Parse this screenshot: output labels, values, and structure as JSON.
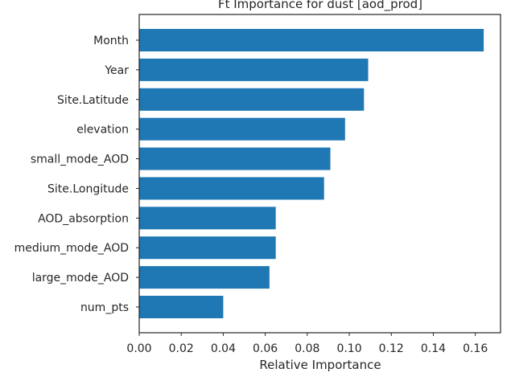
{
  "chart_data": {
    "type": "bar",
    "orientation": "horizontal",
    "title": "Ft Importance for dust [aod_prod]",
    "xlabel": "Relative Importance",
    "ylabel": "",
    "categories": [
      "Month",
      "Year",
      "Site.Latitude",
      "elevation",
      "small_mode_AOD",
      "Site.Longitude",
      "AOD_absorption",
      "medium_mode_AOD",
      "large_mode_AOD",
      "num_pts"
    ],
    "values": [
      0.164,
      0.109,
      0.107,
      0.098,
      0.091,
      0.088,
      0.065,
      0.065,
      0.062,
      0.04
    ],
    "xlim": [
      0.0,
      0.172
    ],
    "xticks": [
      0.0,
      0.02,
      0.04,
      0.06,
      0.08,
      0.1,
      0.12,
      0.14,
      0.16
    ],
    "xtick_labels": [
      "0.00",
      "0.02",
      "0.04",
      "0.06",
      "0.08",
      "0.10",
      "0.12",
      "0.14",
      "0.16"
    ],
    "grid": false,
    "bar_color": "#1f77b4",
    "axes_color": "#262626"
  }
}
